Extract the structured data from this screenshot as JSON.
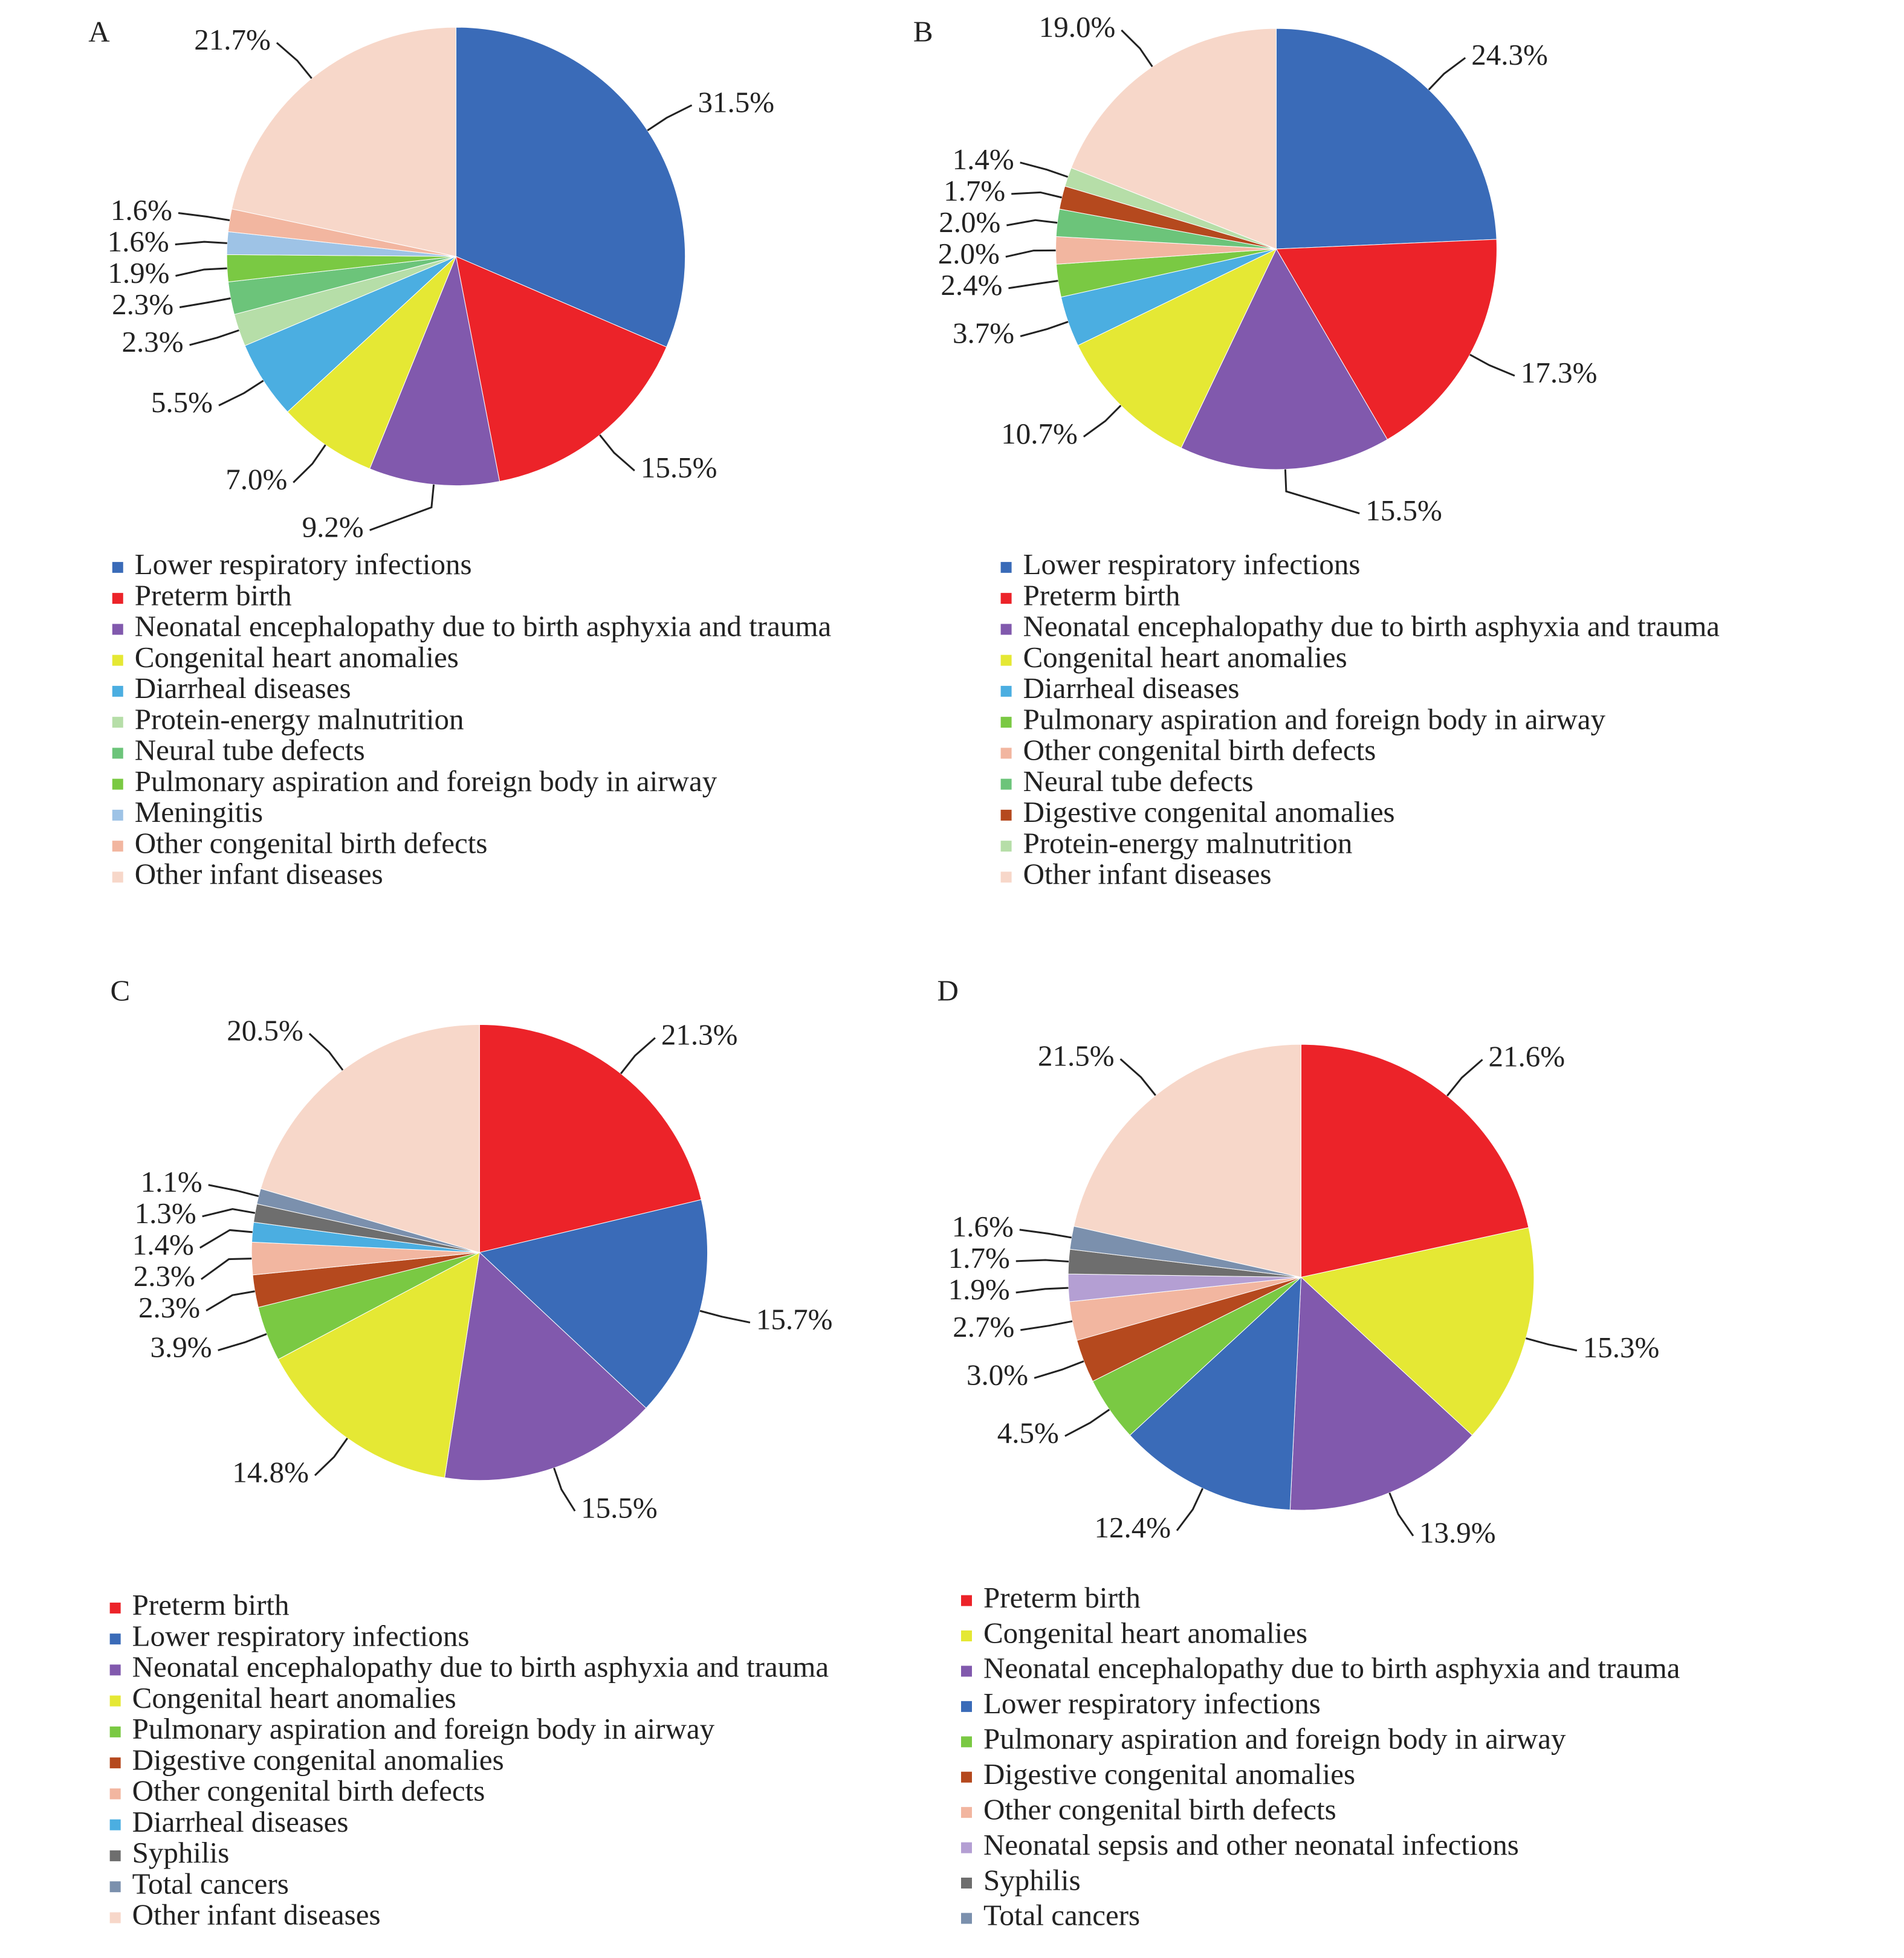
{
  "chart_data": [
    {
      "type": "pie",
      "title": "A",
      "categories": [
        "Lower respiratory infections",
        "Preterm birth",
        "Neonatal encephalopathy due to birth asphyxia and trauma",
        "Congenital heart anomalies",
        "Diarrheal diseases",
        "Protein-energy malnutrition",
        "Neural tube defects",
        "Pulmonary aspiration and foreign body in airway",
        "Meningitis",
        "Other congenital birth defects",
        "Other infant diseases"
      ],
      "values": [
        31.5,
        15.5,
        9.2,
        7.0,
        5.5,
        2.3,
        2.3,
        1.9,
        1.6,
        1.6,
        21.7
      ],
      "value_labels": [
        "31.5%",
        "15.5%",
        "9.2%",
        "7.0%",
        "5.5%",
        "2.3%",
        "2.3%",
        "1.9%",
        "1.6%",
        "1.6%",
        "21.7%"
      ],
      "colors": [
        "#3a6bb8",
        "#ec2329",
        "#8159ad",
        "#e5e834",
        "#4baee1",
        "#b6dea8",
        "#6cc47a",
        "#7ac943",
        "#9ec3e6",
        "#f2b6a0",
        "#f7d7c9"
      ]
    },
    {
      "type": "pie",
      "title": "B",
      "categories": [
        "Lower respiratory infections",
        "Preterm birth",
        "Neonatal encephalopathy due to birth asphyxia and trauma",
        "Congenital heart anomalies",
        "Diarrheal diseases",
        "Pulmonary aspiration and foreign body in airway",
        "Other congenital birth defects",
        "Neural tube defects",
        "Digestive congenital anomalies",
        "Protein-energy malnutrition",
        "Other infant diseases"
      ],
      "values": [
        24.3,
        17.3,
        15.5,
        10.7,
        3.7,
        2.4,
        2.0,
        2.0,
        1.7,
        1.4,
        19.0
      ],
      "value_labels": [
        "24.3%",
        "17.3%",
        "15.5%",
        "10.7%",
        "3.7%",
        "2.4%",
        "2.0%",
        "2.0%",
        "1.7%",
        "1.4%",
        "19.0%"
      ],
      "colors": [
        "#3a6bb8",
        "#ec2329",
        "#8159ad",
        "#e5e834",
        "#4baee1",
        "#7ac943",
        "#f2b6a0",
        "#6cc47a",
        "#b5491e",
        "#b6dea8",
        "#f7d7c9"
      ]
    },
    {
      "type": "pie",
      "title": "C",
      "categories": [
        "Preterm birth",
        "Lower respiratory infections",
        "Neonatal encephalopathy due to birth asphyxia and trauma",
        "Congenital heart anomalies",
        "Pulmonary aspiration and foreign body in airway",
        "Digestive congenital anomalies",
        "Other congenital birth defects",
        "Diarrheal diseases",
        "Syphilis",
        "Total cancers",
        "Other infant diseases"
      ],
      "values": [
        21.3,
        15.7,
        15.5,
        14.8,
        3.9,
        2.3,
        2.3,
        1.4,
        1.3,
        1.1,
        20.5
      ],
      "value_labels": [
        "21.3%",
        "15.7%",
        "15.5%",
        "14.8%",
        "3.9%",
        "2.3%",
        "2.3%",
        "1.4%",
        "1.3%",
        "1.1%",
        "20.5%"
      ],
      "colors": [
        "#ec2329",
        "#3a6bb8",
        "#8159ad",
        "#e5e834",
        "#7ac943",
        "#b5491e",
        "#f2b6a0",
        "#4baee1",
        "#6e6e6e",
        "#7b90ad",
        "#f7d7c9"
      ]
    },
    {
      "type": "pie",
      "title": "D",
      "categories": [
        "Preterm birth",
        "Congenital heart anomalies",
        "Neonatal encephalopathy due to birth asphyxia and trauma",
        "Lower respiratory infections",
        "Pulmonary aspiration and foreign body in airway",
        "Digestive congenital anomalies",
        "Other congenital birth defects",
        "Neonatal sepsis and other neonatal infections",
        "Syphilis",
        "Total cancers",
        null
      ],
      "values": [
        21.6,
        15.3,
        13.9,
        12.4,
        4.5,
        3.0,
        2.7,
        1.9,
        1.7,
        1.6,
        21.5
      ],
      "value_labels": [
        "21.6%",
        "15.3%",
        "13.9%",
        "12.4%",
        "4.5%",
        "3.0%",
        "2.7%",
        "1.9%",
        "1.7%",
        "1.6%",
        "21.5%"
      ],
      "colors": [
        "#ec2329",
        "#e5e834",
        "#8159ad",
        "#3a6bb8",
        "#7ac943",
        "#b5491e",
        "#f2b6a0",
        "#b49fd3",
        "#6e6e6e",
        "#7b90ad",
        "#f7d7c9"
      ]
    }
  ]
}
